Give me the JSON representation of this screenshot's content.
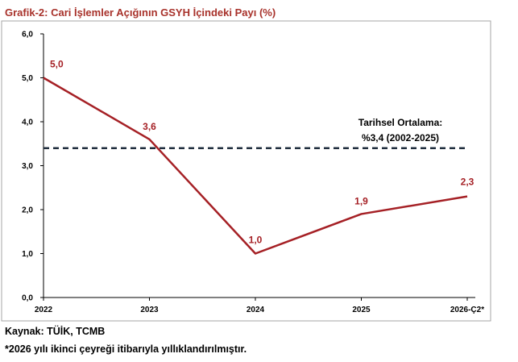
{
  "title": "Grafik-2: Cari İşlemler Açığının GSYH İçindeki Payı (%)",
  "source": "Kaynak: TÜİK, TCMB",
  "note": "*2026 yılı ikinci çeyreği itibarıyla yıllıklandırılmıştır.",
  "colors": {
    "series": "#a52025",
    "reference": "#1f2d3d",
    "axis": "#000000",
    "frame": "#a6a6a6"
  },
  "chart_data": {
    "type": "line",
    "x": [
      "2022",
      "2023",
      "2024",
      "2025",
      "2026-Ç2*"
    ],
    "series": [
      {
        "values": [
          5.0,
          3.6,
          1.0,
          1.9,
          2.3
        ],
        "labels": [
          "5,0",
          "3,6",
          "1,0",
          "1,9",
          "2,3"
        ]
      }
    ],
    "reference_line": {
      "value": 3.4,
      "label_line1": "Tarihsel Ortalama:",
      "label_line2": "%3,4 (2002-2025)",
      "style": "dashed"
    },
    "ylim": [
      0,
      6
    ],
    "yticks": [
      "0,0",
      "1,0",
      "2,0",
      "3,0",
      "4,0",
      "5,0",
      "6,0"
    ],
    "grid": false,
    "xlabel": "",
    "ylabel": ""
  }
}
